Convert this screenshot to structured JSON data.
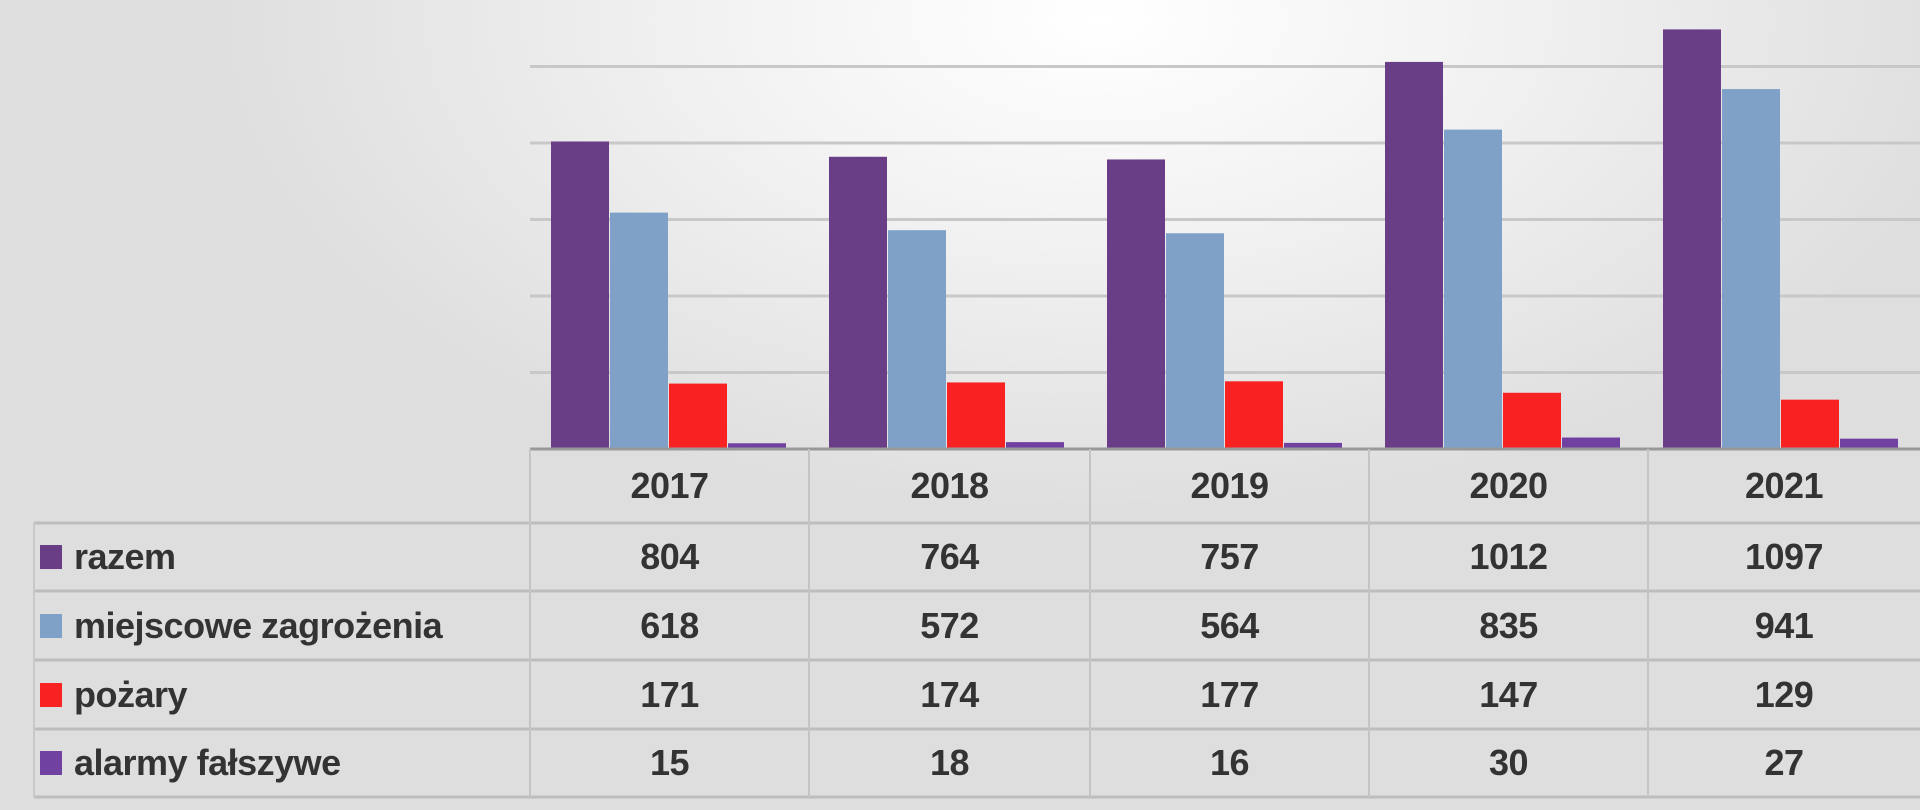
{
  "chart_data": {
    "type": "bar",
    "categories": [
      "2017",
      "2018",
      "2019",
      "2020",
      "2021"
    ],
    "series": [
      {
        "name": "razem",
        "values": [
          804,
          764,
          757,
          1012,
          1097
        ],
        "color": "#6a3d87"
      },
      {
        "name": "miejscowe zagrożenia",
        "values": [
          618,
          572,
          564,
          835,
          941
        ],
        "color": "#7fa0c7"
      },
      {
        "name": "pożary",
        "values": [
          171,
          174,
          177,
          147,
          129
        ],
        "color": "#f82222"
      },
      {
        "name": "alarmy fałszywe",
        "values": [
          15,
          18,
          16,
          30,
          27
        ],
        "color": "#7041a0"
      }
    ],
    "title": "",
    "xlabel": "",
    "ylabel": "",
    "ylim": [
      0,
      1100
    ],
    "grid": true,
    "legend": "data-table"
  }
}
